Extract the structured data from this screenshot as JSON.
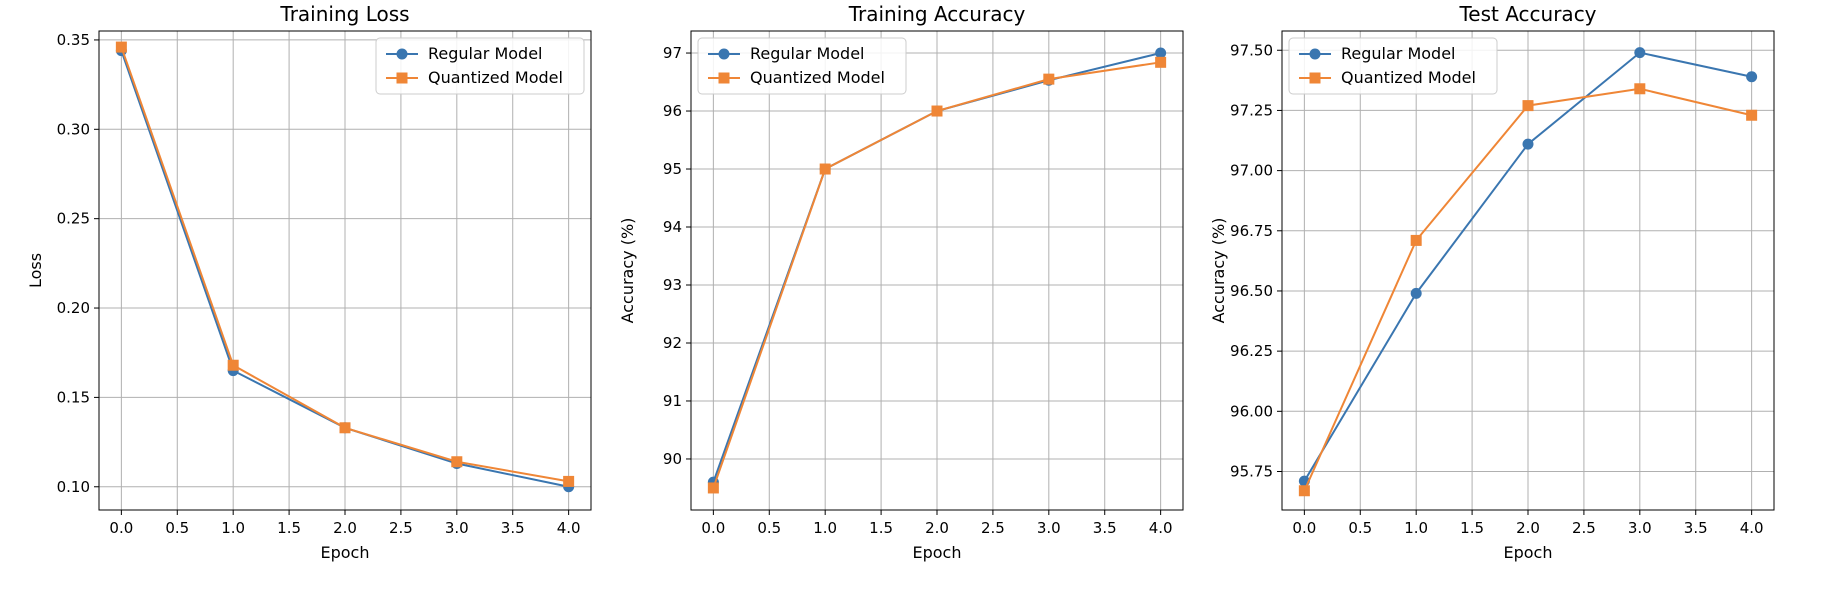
{
  "colors": {
    "regular": "#3a76b0",
    "quantized": "#ef8636",
    "grid": "#b0b0b0"
  },
  "chart_data": [
    {
      "type": "line",
      "title": "Training Loss",
      "xlabel": "Epoch",
      "ylabel": "Loss",
      "x": [
        0,
        1,
        2,
        3,
        4
      ],
      "xlim": [
        -0.2,
        4.2
      ],
      "ylim": [
        0.087,
        0.355
      ],
      "xticks": [
        0,
        0.5,
        1,
        1.5,
        2,
        2.5,
        3,
        3.5,
        4
      ],
      "xtick_labels": [
        "0.0",
        "0.5",
        "1.0",
        "1.5",
        "2.0",
        "2.5",
        "3.0",
        "3.5",
        "4.0"
      ],
      "yticks": [
        0.1,
        0.15,
        0.2,
        0.25,
        0.3,
        0.35
      ],
      "ytick_labels": [
        "0.10",
        "0.15",
        "0.20",
        "0.25",
        "0.30",
        "0.35"
      ],
      "grid": true,
      "legend": "top-right",
      "series": [
        {
          "name": "Regular Model",
          "marker": "circle",
          "values": [
            0.344,
            0.165,
            0.133,
            0.113,
            0.1
          ]
        },
        {
          "name": "Quantized Model",
          "marker": "square",
          "values": [
            0.346,
            0.168,
            0.133,
            0.114,
            0.103
          ]
        }
      ]
    },
    {
      "type": "line",
      "title": "Training Accuracy",
      "xlabel": "Epoch",
      "ylabel": "Accuracy (%)",
      "x": [
        0,
        1,
        2,
        3,
        4
      ],
      "xlim": [
        -0.2,
        4.2
      ],
      "ylim": [
        89.12,
        97.38
      ],
      "xticks": [
        0,
        0.5,
        1,
        1.5,
        2,
        2.5,
        3,
        3.5,
        4
      ],
      "xtick_labels": [
        "0.0",
        "0.5",
        "1.0",
        "1.5",
        "2.0",
        "2.5",
        "3.0",
        "3.5",
        "4.0"
      ],
      "yticks": [
        90,
        91,
        92,
        93,
        94,
        95,
        96,
        97
      ],
      "ytick_labels": [
        "90",
        "91",
        "92",
        "93",
        "94",
        "95",
        "96",
        "97"
      ],
      "grid": true,
      "legend": "top-left",
      "series": [
        {
          "name": "Regular Model",
          "marker": "circle",
          "values": [
            89.6,
            95.0,
            96.0,
            96.53,
            97.0
          ]
        },
        {
          "name": "Quantized Model",
          "marker": "square",
          "values": [
            89.5,
            95.0,
            96.0,
            96.55,
            96.84
          ]
        }
      ]
    },
    {
      "type": "line",
      "title": "Test Accuracy",
      "xlabel": "Epoch",
      "ylabel": "Accuracy (%)",
      "x": [
        0,
        1,
        2,
        3,
        4
      ],
      "xlim": [
        -0.2,
        4.2
      ],
      "ylim": [
        95.59,
        97.58
      ],
      "xticks": [
        0,
        0.5,
        1,
        1.5,
        2,
        2.5,
        3,
        3.5,
        4
      ],
      "xtick_labels": [
        "0.0",
        "0.5",
        "1.0",
        "1.5",
        "2.0",
        "2.5",
        "3.0",
        "3.5",
        "4.0"
      ],
      "yticks": [
        95.75,
        96.0,
        96.25,
        96.5,
        96.75,
        97.0,
        97.25,
        97.5
      ],
      "ytick_labels": [
        "95.75",
        "96.00",
        "96.25",
        "96.50",
        "96.75",
        "97.00",
        "97.25",
        "97.50"
      ],
      "grid": true,
      "legend": "top-left",
      "series": [
        {
          "name": "Regular Model",
          "marker": "circle",
          "values": [
            95.71,
            96.49,
            97.11,
            97.49,
            97.39
          ]
        },
        {
          "name": "Quantized Model",
          "marker": "square",
          "values": [
            95.67,
            96.71,
            97.27,
            97.34,
            97.23
          ]
        }
      ]
    }
  ]
}
